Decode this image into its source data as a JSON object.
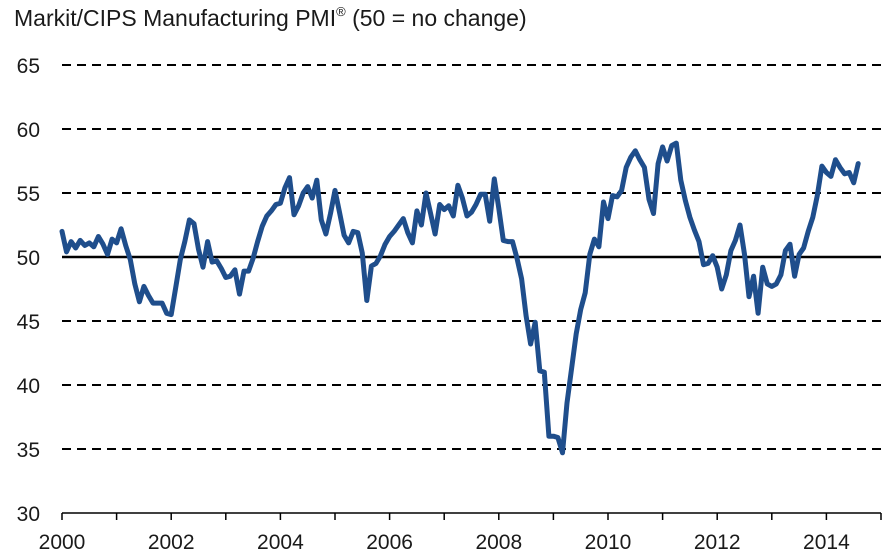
{
  "chart_data": {
    "type": "line",
    "title": "Markit/CIPS Manufacturing PMI",
    "title_mark": "®",
    "title_suffix": " (50 = no change)",
    "xlabel": "",
    "ylabel": "",
    "ylim": [
      30,
      65
    ],
    "yticks": [
      65,
      60,
      55,
      50,
      45,
      40,
      35,
      30
    ],
    "xlim": [
      2000,
      2015
    ],
    "xticks": [
      "2000",
      "2002",
      "2004",
      "2006",
      "2008",
      "2010",
      "2012",
      "2014"
    ],
    "grid": "dashed horizontal",
    "reference_line": 50,
    "series": [
      {
        "color": "#1f4e8c",
        "x_start": "2000-01",
        "frequency": "monthly",
        "values": [
          52.0,
          50.4,
          51.2,
          50.7,
          51.3,
          50.9,
          51.1,
          50.8,
          51.6,
          51.0,
          50.2,
          51.4,
          51.1,
          52.2,
          50.9,
          49.8,
          47.9,
          46.5,
          47.7,
          47.0,
          46.4,
          46.4,
          46.4,
          45.6,
          45.5,
          47.6,
          49.8,
          51.2,
          52.9,
          52.6,
          50.6,
          49.2,
          51.2,
          49.6,
          49.7,
          49.1,
          48.4,
          48.5,
          49.0,
          47.1,
          48.9,
          48.9,
          49.9,
          51.2,
          52.4,
          53.2,
          53.6,
          54.1,
          54.2,
          55.4,
          56.2,
          53.3,
          54.0,
          55.0,
          55.5,
          54.6,
          56.0,
          52.9,
          51.8,
          53.4,
          55.2,
          53.5,
          51.7,
          51.1,
          52.0,
          51.9,
          50.3,
          46.6,
          49.3,
          49.5,
          50.1,
          51.0,
          51.6,
          52.0,
          52.5,
          53.0,
          51.9,
          51.1,
          53.6,
          52.5,
          55.0,
          53.4,
          51.8,
          54.1,
          53.7,
          54.0,
          53.2,
          55.6,
          54.6,
          53.2,
          53.5,
          54.1,
          54.9,
          54.9,
          52.8,
          56.1,
          53.8,
          51.3,
          51.2,
          51.2,
          49.9,
          48.3,
          45.4,
          43.2,
          44.9,
          41.1,
          41.0,
          36.0,
          36.0,
          35.9,
          34.7,
          38.6,
          41.3,
          44.0,
          45.9,
          47.2,
          50.2,
          51.4,
          50.8,
          54.3,
          53.0,
          54.8,
          54.7,
          55.2,
          57.0,
          57.8,
          58.3,
          57.6,
          57.0,
          54.5,
          53.4,
          57.3,
          58.6,
          57.5,
          58.7,
          58.9,
          56.0,
          54.4,
          53.1,
          52.1,
          51.2,
          49.4,
          49.5,
          50.1,
          49.2,
          47.5,
          48.6,
          50.5,
          51.3,
          52.5,
          50.2,
          46.9,
          48.5,
          45.6,
          49.2,
          47.9,
          47.7,
          47.9,
          48.6,
          50.5,
          51.0,
          48.5,
          50.2,
          50.7,
          52.0,
          53.1,
          54.8,
          57.1,
          56.6,
          56.3,
          57.6,
          57.0,
          56.5,
          56.6,
          55.8,
          57.3
        ]
      }
    ]
  }
}
